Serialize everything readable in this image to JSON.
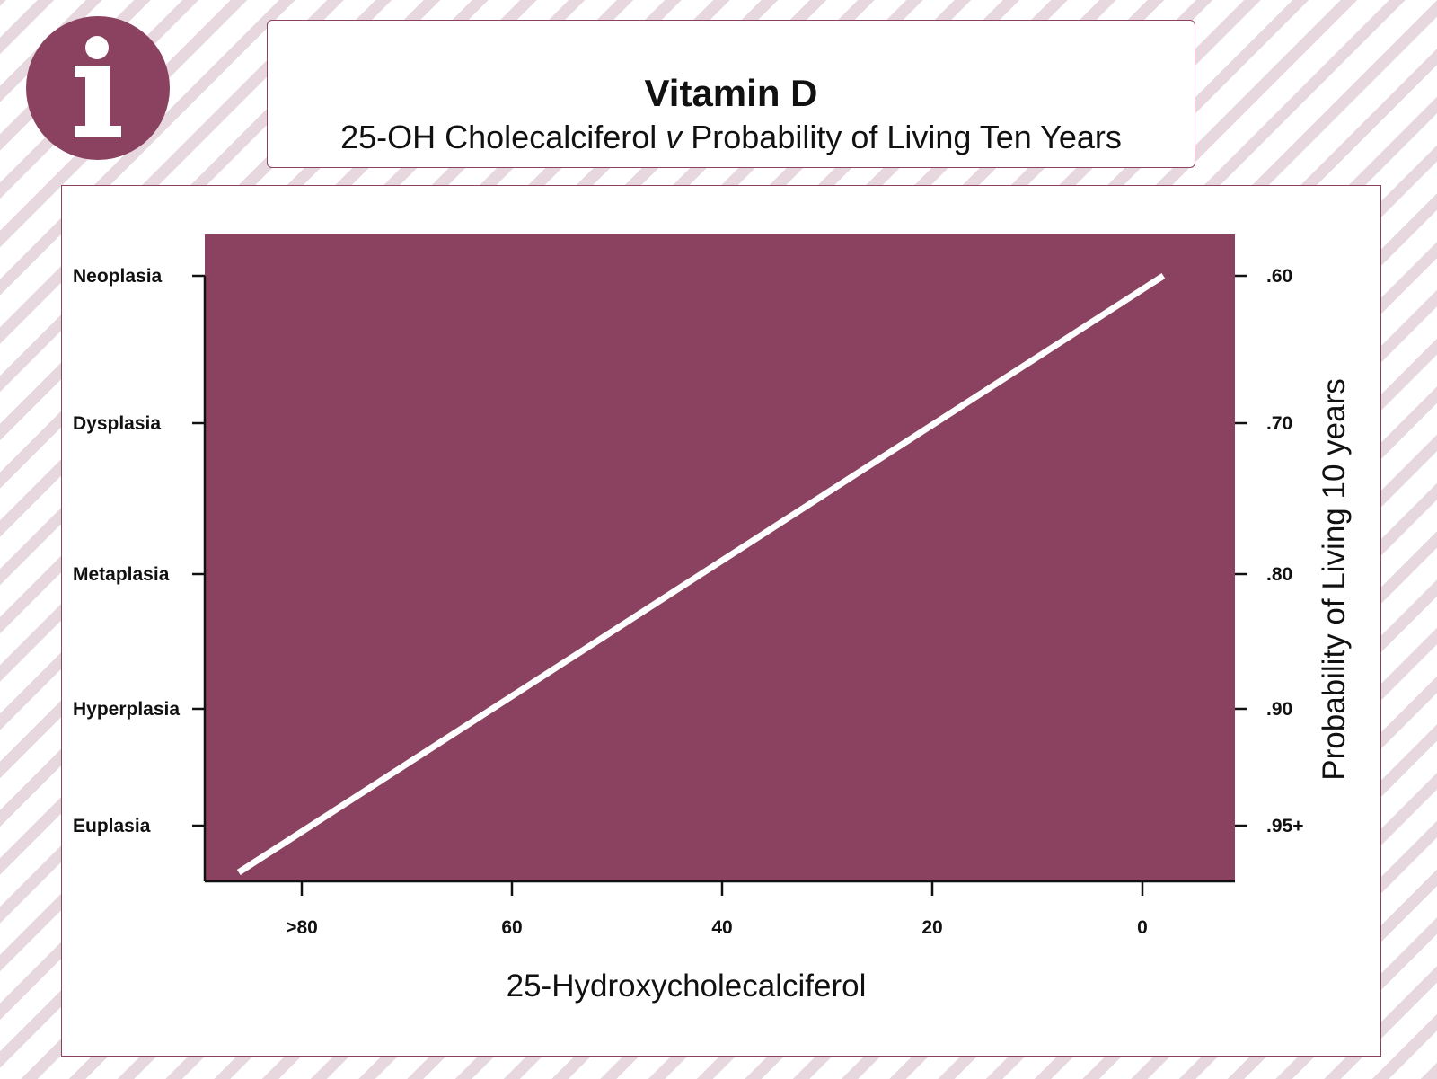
{
  "header": {
    "icon": "info-icon",
    "title": "Vitamin D",
    "subtitle_start": "25-OH Cholecalciferol ",
    "subtitle_italic": "v",
    "subtitle_end": " Probability of Living Ten Years"
  },
  "colors": {
    "accent": "#8b4260",
    "stripe": "#e6d8de",
    "line": "#ffffff"
  },
  "chart_data": {
    "type": "line",
    "x_categories": [
      ">80",
      "60",
      "40",
      "20",
      "0"
    ],
    "x_ticks": [
      80,
      60,
      40,
      20,
      0
    ],
    "xlabel": "25-Hydroxycholecalciferol",
    "left_y_categories": [
      "Neoplasia",
      "Dysplasia",
      "Metaplasia",
      "Hyperplasia",
      "Euplasia"
    ],
    "right_y_ticks": [
      ".60",
      ".70",
      ".80",
      ".90",
      ".95+"
    ],
    "right_ylabel": "Probability of Living 10 years",
    "series": [
      {
        "points": [
          {
            "x": 86,
            "y": 0.97
          },
          {
            "x": -2,
            "y": 0.6
          }
        ]
      }
    ],
    "xlim": [
      90,
      -9
    ],
    "x_reversed": true,
    "grid": false,
    "legend": "none",
    "plot_background": "#8b4260"
  }
}
